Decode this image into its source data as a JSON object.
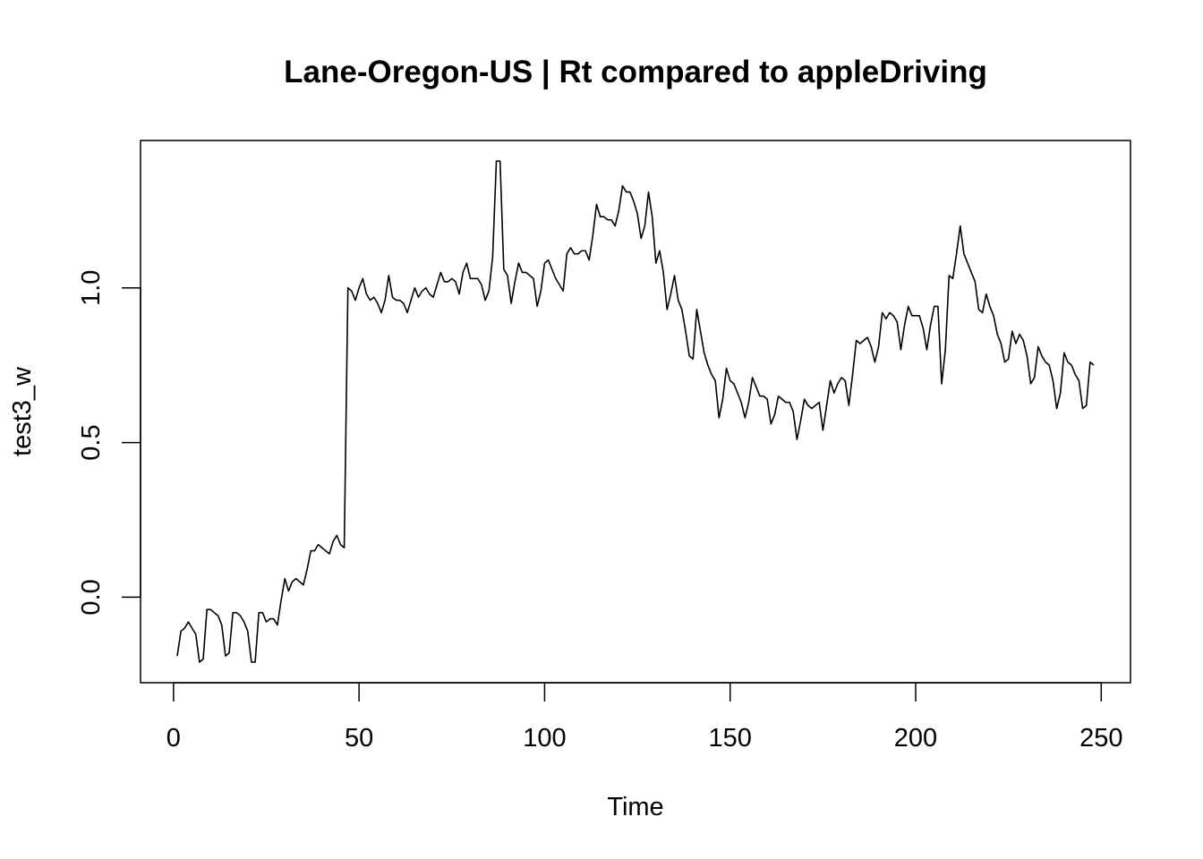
{
  "chart_data": {
    "type": "line",
    "title": "Lane-Oregon-US | Rt compared to appleDriving",
    "xlabel": "Time",
    "ylabel": "test3_w",
    "xlim": [
      1,
      248
    ],
    "ylim": [
      -0.21,
      1.41
    ],
    "x_ticks": [
      0,
      50,
      100,
      150,
      200,
      250
    ],
    "x_tick_labels": [
      "0",
      "50",
      "100",
      "150",
      "200",
      "250"
    ],
    "y_ticks": [
      0.0,
      0.5,
      1.0
    ],
    "y_tick_labels": [
      "0.0",
      "0.5",
      "1.0"
    ],
    "grid": false,
    "legend": "none",
    "series": [
      {
        "color": "#000000",
        "x_start": 1,
        "x_step": 1,
        "values": [
          -0.19,
          -0.11,
          -0.1,
          -0.08,
          -0.1,
          -0.12,
          -0.21,
          -0.2,
          -0.04,
          -0.04,
          -0.05,
          -0.06,
          -0.09,
          -0.19,
          -0.18,
          -0.05,
          -0.05,
          -0.06,
          -0.08,
          -0.11,
          -0.21,
          -0.21,
          -0.05,
          -0.05,
          -0.08,
          -0.07,
          -0.07,
          -0.09,
          -0.01,
          0.06,
          0.02,
          0.05,
          0.06,
          0.05,
          0.04,
          0.09,
          0.15,
          0.15,
          0.17,
          0.16,
          0.15,
          0.14,
          0.18,
          0.2,
          0.17,
          0.16,
          1.0,
          0.99,
          0.96,
          1.0,
          1.03,
          0.98,
          0.96,
          0.97,
          0.95,
          0.92,
          0.96,
          1.04,
          0.97,
          0.96,
          0.96,
          0.95,
          0.92,
          0.96,
          1.0,
          0.97,
          0.99,
          1.0,
          0.98,
          0.97,
          1.01,
          1.05,
          1.02,
          1.02,
          1.03,
          1.02,
          0.98,
          1.05,
          1.08,
          1.03,
          1.03,
          1.03,
          1.01,
          0.96,
          0.99,
          1.1,
          1.41,
          1.41,
          1.06,
          1.04,
          0.95,
          1.02,
          1.08,
          1.05,
          1.05,
          1.04,
          1.03,
          0.94,
          0.99,
          1.08,
          1.09,
          1.06,
          1.03,
          1.01,
          0.99,
          1.11,
          1.13,
          1.11,
          1.11,
          1.12,
          1.12,
          1.09,
          1.17,
          1.27,
          1.23,
          1.23,
          1.22,
          1.22,
          1.2,
          1.25,
          1.33,
          1.31,
          1.31,
          1.28,
          1.24,
          1.16,
          1.2,
          1.31,
          1.23,
          1.08,
          1.12,
          1.05,
          0.93,
          0.98,
          1.04,
          0.96,
          0.93,
          0.86,
          0.78,
          0.77,
          0.93,
          0.86,
          0.79,
          0.75,
          0.72,
          0.7,
          0.58,
          0.64,
          0.74,
          0.7,
          0.69,
          0.66,
          0.63,
          0.58,
          0.63,
          0.71,
          0.68,
          0.65,
          0.65,
          0.64,
          0.56,
          0.59,
          0.65,
          0.64,
          0.63,
          0.63,
          0.6,
          0.51,
          0.57,
          0.64,
          0.62,
          0.61,
          0.62,
          0.63,
          0.54,
          0.62,
          0.7,
          0.66,
          0.69,
          0.71,
          0.7,
          0.62,
          0.72,
          0.83,
          0.82,
          0.83,
          0.84,
          0.81,
          0.76,
          0.81,
          0.92,
          0.9,
          0.92,
          0.91,
          0.89,
          0.8,
          0.88,
          0.94,
          0.91,
          0.91,
          0.91,
          0.87,
          0.8,
          0.88,
          0.94,
          0.94,
          0.69,
          0.8,
          1.04,
          1.03,
          1.11,
          1.2,
          1.11,
          1.08,
          1.05,
          1.02,
          0.93,
          0.92,
          0.98,
          0.94,
          0.91,
          0.85,
          0.82,
          0.76,
          0.77,
          0.86,
          0.82,
          0.85,
          0.83,
          0.78,
          0.69,
          0.71,
          0.81,
          0.78,
          0.76,
          0.75,
          0.7,
          0.61,
          0.66,
          0.79,
          0.76,
          0.75,
          0.72,
          0.7,
          0.61,
          0.62,
          0.76,
          0.75
        ]
      }
    ]
  }
}
